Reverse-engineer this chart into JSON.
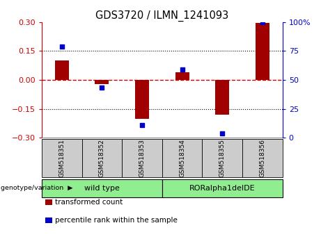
{
  "title": "GDS3720 / ILMN_1241093",
  "samples": [
    "GSM518351",
    "GSM518352",
    "GSM518353",
    "GSM518354",
    "GSM518355",
    "GSM518356"
  ],
  "red_bars": [
    0.1,
    -0.02,
    -0.2,
    0.04,
    -0.18,
    0.295
  ],
  "blue_dots_left": [
    0.175,
    -0.04,
    -0.235,
    0.053,
    -0.278,
    0.298
  ],
  "ylim_left": [
    -0.3,
    0.3
  ],
  "ylim_right": [
    0,
    100
  ],
  "yticks_left": [
    -0.3,
    -0.15,
    0,
    0.15,
    0.3
  ],
  "yticks_right": [
    0,
    25,
    50,
    75,
    100
  ],
  "ytick_labels_right": [
    "0",
    "25",
    "50",
    "75",
    "100%"
  ],
  "bar_color": "#a00000",
  "dot_color": "#0000cc",
  "hline_color": "#cc0000",
  "dotline_color": "#000000",
  "groups": [
    {
      "label": "wild type",
      "start": 0,
      "end": 3,
      "color": "#90ee90"
    },
    {
      "label": "RORalpha1delDE",
      "start": 3,
      "end": 6,
      "color": "#90ee90"
    }
  ],
  "legend_items": [
    {
      "label": "transformed count",
      "color": "#a00000"
    },
    {
      "label": "percentile rank within the sample",
      "color": "#0000cc"
    }
  ],
  "bar_width": 0.35,
  "left_axis_color": "#cc0000",
  "right_axis_color": "#0000cc",
  "sample_box_color": "#cccccc",
  "figsize": [
    4.61,
    3.54
  ],
  "dpi": 100
}
